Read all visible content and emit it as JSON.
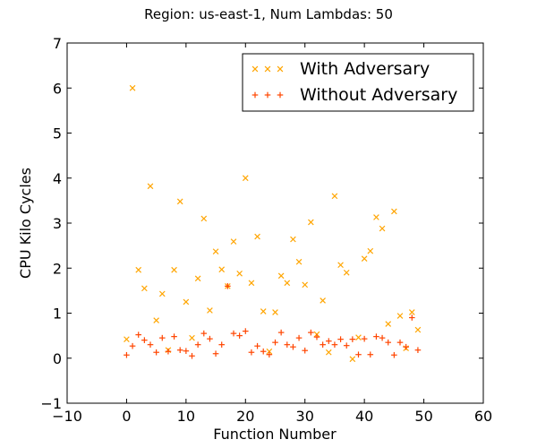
{
  "chart_data": {
    "type": "scatter",
    "title": "Region: us-east-1, Num Lambdas: 50",
    "xlabel": "Function Number",
    "ylabel": "CPU Kilo Cycles",
    "xlim": [
      -10,
      60
    ],
    "ylim": [
      -1,
      7
    ],
    "xticks": [
      -10,
      0,
      10,
      20,
      30,
      40,
      50,
      60
    ],
    "yticks": [
      -1,
      0,
      1,
      2,
      3,
      4,
      5,
      6,
      7
    ],
    "xtick_labels": [
      "−10",
      "0",
      "10",
      "20",
      "30",
      "40",
      "50",
      "60"
    ],
    "ytick_labels": [
      "−1",
      "0",
      "1",
      "2",
      "3",
      "4",
      "5",
      "6",
      "7"
    ],
    "grid": false,
    "legend_position": "top-right",
    "series": [
      {
        "name": "With Adversary",
        "marker": "x",
        "color": "#ffa500",
        "x": [
          0,
          1,
          2,
          3,
          4,
          5,
          6,
          7,
          8,
          9,
          10,
          11,
          12,
          13,
          14,
          15,
          16,
          17,
          18,
          19,
          20,
          21,
          22,
          23,
          24,
          25,
          26,
          27,
          28,
          29,
          30,
          31,
          32,
          33,
          34,
          35,
          36,
          37,
          38,
          39,
          40,
          41,
          42,
          43,
          44,
          45,
          46,
          47,
          48,
          49
        ],
        "y": [
          0.42,
          6.0,
          1.96,
          1.55,
          3.82,
          0.84,
          1.43,
          0.18,
          1.96,
          3.48,
          1.25,
          0.45,
          1.77,
          3.1,
          1.06,
          2.37,
          1.97,
          1.6,
          2.59,
          1.88,
          4.0,
          1.67,
          2.7,
          1.04,
          0.15,
          1.02,
          1.83,
          1.67,
          2.64,
          2.14,
          1.63,
          3.02,
          0.53,
          1.28,
          0.13,
          3.6,
          2.07,
          1.9,
          -0.02,
          0.46,
          2.21,
          2.38,
          3.13,
          2.88,
          0.76,
          3.26,
          0.94,
          0.22,
          1.02,
          0.63
        ]
      },
      {
        "name": "Without Adversary",
        "marker": "+",
        "color": "#ff4500",
        "x": [
          0,
          1,
          2,
          3,
          4,
          5,
          6,
          7,
          8,
          9,
          10,
          11,
          12,
          13,
          14,
          15,
          16,
          17,
          18,
          19,
          20,
          21,
          22,
          23,
          24,
          25,
          26,
          27,
          28,
          29,
          30,
          31,
          32,
          33,
          34,
          35,
          36,
          37,
          38,
          39,
          40,
          41,
          42,
          43,
          44,
          45,
          46,
          47,
          48,
          49
        ],
        "y": [
          0.07,
          0.27,
          0.52,
          0.4,
          0.3,
          0.13,
          0.45,
          0.15,
          0.48,
          0.18,
          0.16,
          0.05,
          0.3,
          0.55,
          0.43,
          0.1,
          0.3,
          1.6,
          0.55,
          0.5,
          0.6,
          0.13,
          0.27,
          0.15,
          0.08,
          0.35,
          0.57,
          0.3,
          0.25,
          0.45,
          0.17,
          0.57,
          0.47,
          0.3,
          0.38,
          0.3,
          0.42,
          0.28,
          0.42,
          0.08,
          0.43,
          0.08,
          0.48,
          0.45,
          0.35,
          0.07,
          0.35,
          0.25,
          0.9,
          0.18
        ]
      }
    ]
  }
}
